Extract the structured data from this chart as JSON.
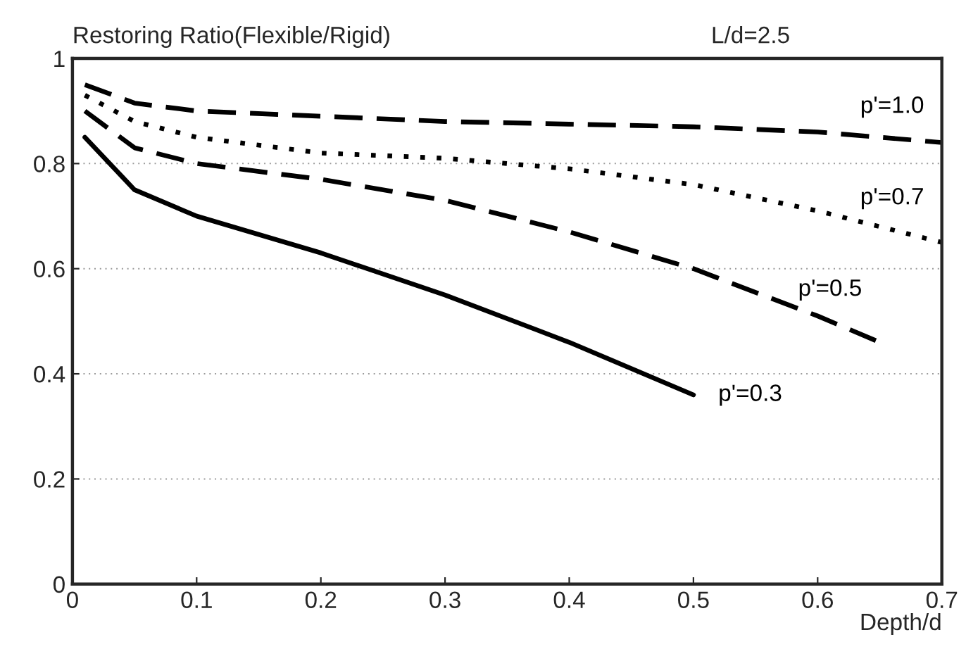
{
  "chart_data": {
    "type": "line",
    "ylabel": "Restoring Ratio(Flexible/Rigid)",
    "xlabel": "Depth/d",
    "annotations": [
      "L/d=2.5"
    ],
    "xlim": [
      0,
      0.7
    ],
    "ylim": [
      0,
      1
    ],
    "xticks": [
      0,
      0.1,
      0.2,
      0.3,
      0.4,
      0.5,
      0.6,
      0.7
    ],
    "yticks": [
      0,
      0.2,
      0.4,
      0.6,
      0.8,
      1
    ],
    "grid": "y",
    "marker": "none",
    "series": [
      {
        "name": "p'=1.0",
        "color": "#000000",
        "line_style": "dashed",
        "x": [
          0.01,
          0.05,
          0.1,
          0.2,
          0.3,
          0.4,
          0.5,
          0.6,
          0.7
        ],
        "values": [
          0.95,
          0.915,
          0.9,
          0.89,
          0.88,
          0.875,
          0.87,
          0.86,
          0.84
        ]
      },
      {
        "name": "p'=0.7",
        "color": "#000000",
        "line_style": "dotted",
        "x": [
          0.01,
          0.05,
          0.1,
          0.2,
          0.3,
          0.4,
          0.5,
          0.6,
          0.7
        ],
        "values": [
          0.93,
          0.88,
          0.85,
          0.82,
          0.81,
          0.79,
          0.76,
          0.71,
          0.65
        ]
      },
      {
        "name": "p'=0.5",
        "color": "#000000",
        "line_style": "dashed",
        "x": [
          0.01,
          0.05,
          0.1,
          0.2,
          0.3,
          0.4,
          0.5,
          0.6,
          0.65
        ],
        "values": [
          0.9,
          0.83,
          0.8,
          0.77,
          0.73,
          0.67,
          0.6,
          0.51,
          0.46
        ]
      },
      {
        "name": "p'=0.3",
        "color": "#000000",
        "line_style": "solid",
        "x": [
          0.01,
          0.05,
          0.1,
          0.2,
          0.3,
          0.4,
          0.5
        ],
        "values": [
          0.85,
          0.75,
          0.7,
          0.63,
          0.55,
          0.46,
          0.36
        ]
      }
    ]
  }
}
